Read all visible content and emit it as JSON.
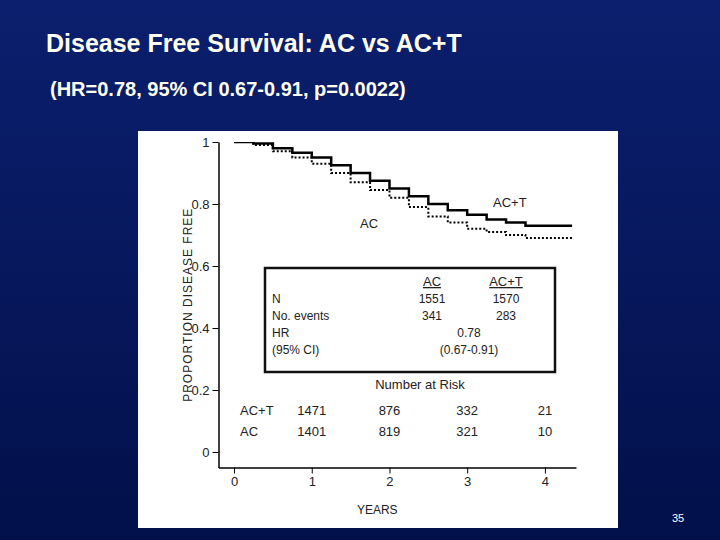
{
  "chart_data": {
    "type": "line",
    "title": "Disease Free Survival: AC vs AC+T",
    "subtitle": "(HR=0.78, 95% CI 0.67-0.91, p=0.0022)",
    "x_label": "YEARS",
    "y_label": "PROPORTION DISEASE FREE",
    "x": [
      0,
      0.25,
      0.5,
      0.75,
      1,
      1.25,
      1.5,
      1.75,
      2,
      2.25,
      2.5,
      2.75,
      3,
      3.25,
      3.5,
      3.75,
      4,
      4.35
    ],
    "series": [
      {
        "name": "AC+T",
        "color": "#000000",
        "line_style": "solid",
        "values": [
          1,
          0.995,
          0.98,
          0.965,
          0.95,
          0.925,
          0.9,
          0.875,
          0.85,
          0.825,
          0.8,
          0.78,
          0.765,
          0.75,
          0.74,
          0.73,
          0.73,
          0.73
        ]
      },
      {
        "name": "AC",
        "color": "#000000",
        "line_style": "dotted",
        "values": [
          1,
          0.99,
          0.97,
          0.95,
          0.93,
          0.9,
          0.87,
          0.845,
          0.82,
          0.79,
          0.76,
          0.74,
          0.72,
          0.71,
          0.7,
          0.69,
          0.69,
          0.69
        ]
      }
    ],
    "xlim": [
      -0.2,
      4.4
    ],
    "ylim": [
      -0.05,
      1
    ],
    "xticks": [
      0,
      1,
      2,
      3,
      4
    ],
    "yticks": [
      0,
      0.2,
      0.4,
      0.6,
      0.8,
      1
    ],
    "grid": false,
    "table": {
      "columns": [
        "AC",
        "AC+T"
      ],
      "rows": [
        {
          "label": "N",
          "cells": [
            1551,
            1570
          ]
        },
        {
          "label": "No. events",
          "cells": [
            341,
            283
          ]
        },
        {
          "label": "HR",
          "cells": [
            0.78
          ]
        },
        {
          "label": "(95% CI)",
          "cells": [
            "(0.67-0.91)"
          ]
        }
      ]
    },
    "at_risk": {
      "title": "Number at Risk",
      "x": [
        1,
        2,
        3,
        4
      ],
      "rows": [
        {
          "label": "AC+T",
          "values": [
            1471,
            876,
            332,
            21
          ]
        },
        {
          "label": "AC",
          "values": [
            1401,
            819,
            321,
            10
          ]
        }
      ]
    },
    "page_number": "35"
  }
}
